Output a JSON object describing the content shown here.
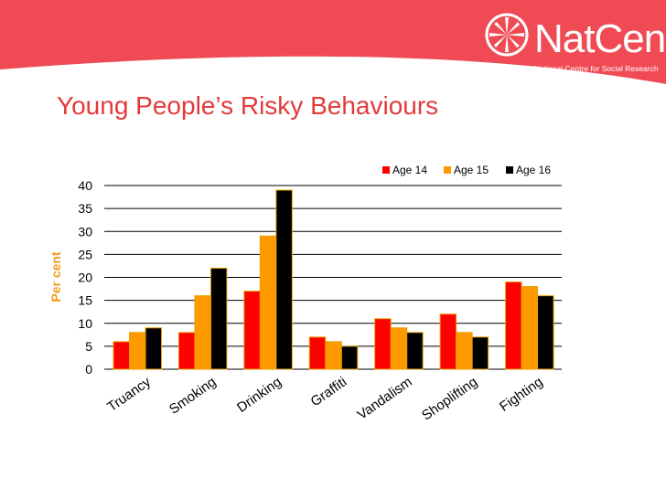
{
  "header": {
    "logo_name": "NatCen",
    "logo_tagline": "National Centre for Social Research",
    "title": "Young People’s Risky Behaviours"
  },
  "colors": {
    "banner": "#f04b55",
    "title": "#e33a3a",
    "ylabel": "#f39c1e",
    "age14": "#ff0000",
    "age15": "#ff9900",
    "age16": "#000000",
    "bar_outline": "#e8a000"
  },
  "chart_data": {
    "type": "bar",
    "categories": [
      "Truancy",
      "Smoking",
      "Drinking",
      "Graffiti",
      "Vandalism",
      "Shoplifting",
      "Fighting"
    ],
    "series": [
      {
        "name": "Age 14",
        "values": [
          6,
          8,
          17,
          7,
          11,
          12,
          19
        ]
      },
      {
        "name": "Age 15",
        "values": [
          8,
          16,
          29,
          6,
          9,
          8,
          18
        ]
      },
      {
        "name": "Age 16",
        "values": [
          9,
          22,
          39,
          5,
          8,
          7,
          16
        ]
      }
    ],
    "ylabel": "Per cent",
    "xlabel": "",
    "ylim": [
      0,
      40
    ],
    "yticks": [
      0,
      5,
      10,
      15,
      20,
      25,
      30,
      35,
      40
    ],
    "grid": true,
    "legend": "top-right"
  }
}
